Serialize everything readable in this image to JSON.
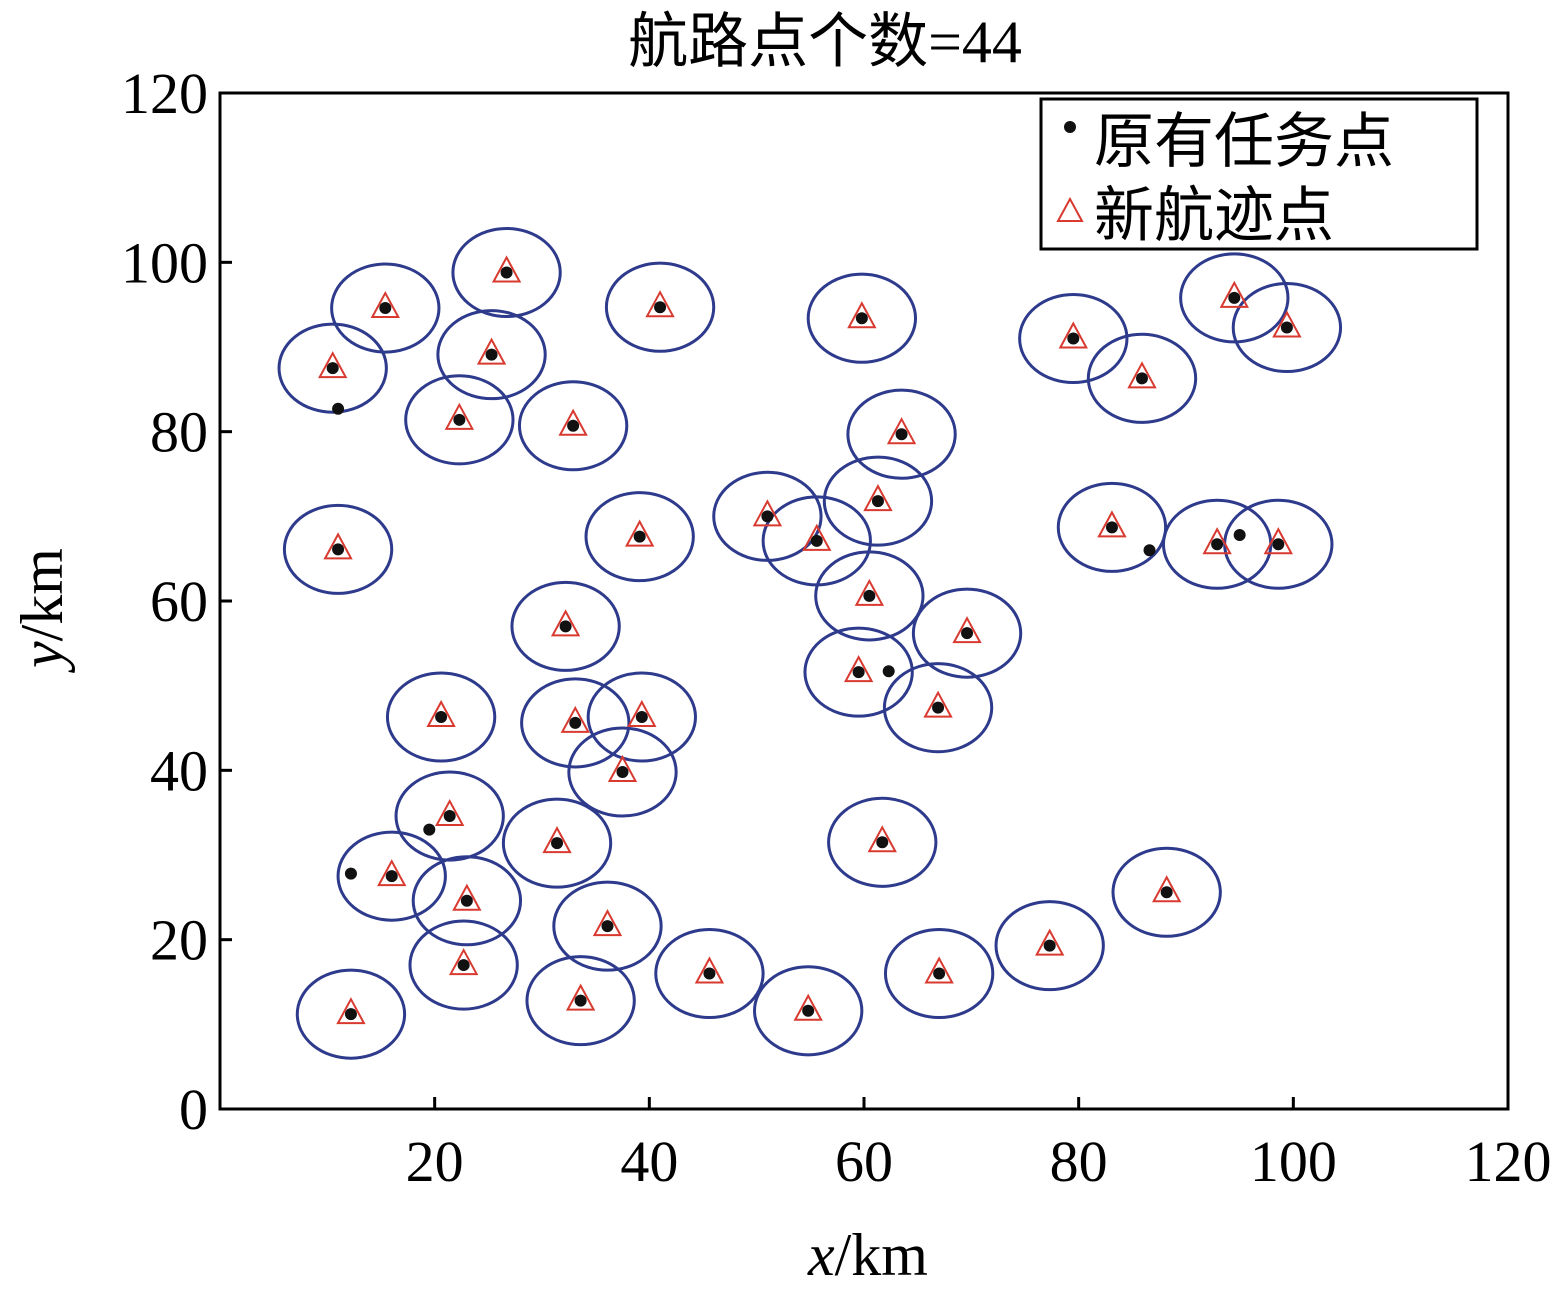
{
  "chart_data": {
    "type": "scatter",
    "title": "航路点个数=44",
    "xlabel_var": "x",
    "xlabel_unit": "/km",
    "ylabel_var": "y",
    "ylabel_unit": "/km",
    "xlim": [
      0,
      120
    ],
    "ylim": [
      0,
      120
    ],
    "x_ticks": [
      "20",
      "40",
      "60",
      "80",
      "100",
      "120"
    ],
    "x_tick_values": [
      20,
      40,
      60,
      80,
      100,
      120
    ],
    "y_ticks": [
      "0",
      "20",
      "40",
      "60",
      "80",
      "100",
      "120"
    ],
    "y_tick_values": [
      0,
      20,
      40,
      60,
      80,
      100,
      120
    ],
    "grid": false,
    "legend_position": "top-right",
    "circle_radius_x": 5.0,
    "circle_radius_y": 5.2,
    "colors": {
      "task_point": "#111111",
      "waypoint": "#d93a30",
      "circle": "#2e3a8c",
      "axis": "#000000"
    },
    "series": [
      {
        "name": "原有任务点",
        "marker": "dot",
        "points": [
          [
            12.2,
            11.2
          ],
          [
            22.7,
            17.0
          ],
          [
            33.6,
            12.8
          ],
          [
            45.6,
            16.0
          ],
          [
            54.8,
            11.6
          ],
          [
            67.0,
            16.0
          ],
          [
            77.3,
            19.3
          ],
          [
            88.2,
            25.6
          ],
          [
            16.0,
            27.5
          ],
          [
            12.2,
            27.8
          ],
          [
            23.0,
            24.6
          ],
          [
            36.1,
            21.6
          ],
          [
            21.4,
            34.6
          ],
          [
            19.5,
            33.0
          ],
          [
            31.4,
            31.4
          ],
          [
            61.7,
            31.5
          ],
          [
            20.6,
            46.3
          ],
          [
            33.1,
            45.6
          ],
          [
            39.3,
            46.3
          ],
          [
            37.5,
            39.8
          ],
          [
            32.2,
            57.0
          ],
          [
            59.5,
            51.6
          ],
          [
            62.3,
            51.7
          ],
          [
            66.9,
            47.4
          ],
          [
            69.6,
            56.2
          ],
          [
            60.5,
            60.6
          ],
          [
            11.0,
            66.1
          ],
          [
            39.1,
            67.6
          ],
          [
            51.0,
            70.0
          ],
          [
            55.6,
            67.1
          ],
          [
            61.3,
            71.8
          ],
          [
            63.5,
            79.7
          ],
          [
            83.1,
            68.7
          ],
          [
            86.6,
            66.0
          ],
          [
            92.9,
            66.7
          ],
          [
            95.0,
            67.8
          ],
          [
            98.6,
            66.7
          ],
          [
            11.0,
            82.7
          ],
          [
            10.5,
            87.5
          ],
          [
            22.3,
            81.4
          ],
          [
            32.9,
            80.7
          ],
          [
            15.4,
            94.6
          ],
          [
            26.7,
            98.8
          ],
          [
            25.3,
            89.1
          ],
          [
            41.0,
            94.7
          ],
          [
            59.8,
            93.4
          ],
          [
            79.5,
            91.0
          ],
          [
            85.9,
            86.3
          ],
          [
            94.5,
            95.8
          ],
          [
            99.4,
            92.3
          ]
        ]
      },
      {
        "name": "新航迹点",
        "marker": "triangle",
        "points": [
          [
            12.2,
            11.2
          ],
          [
            22.7,
            17.0
          ],
          [
            33.6,
            12.8
          ],
          [
            45.6,
            16.0
          ],
          [
            54.8,
            11.6
          ],
          [
            67.0,
            16.0
          ],
          [
            77.3,
            19.3
          ],
          [
            88.2,
            25.6
          ],
          [
            16.0,
            27.5
          ],
          [
            23.0,
            24.6
          ],
          [
            36.1,
            21.6
          ],
          [
            21.4,
            34.6
          ],
          [
            31.4,
            31.4
          ],
          [
            61.7,
            31.5
          ],
          [
            20.6,
            46.3
          ],
          [
            33.1,
            45.6
          ],
          [
            39.3,
            46.3
          ],
          [
            37.5,
            39.8
          ],
          [
            32.2,
            57.0
          ],
          [
            59.5,
            51.6
          ],
          [
            66.9,
            47.4
          ],
          [
            69.6,
            56.2
          ],
          [
            60.5,
            60.6
          ],
          [
            11.0,
            66.1
          ],
          [
            39.1,
            67.6
          ],
          [
            51.0,
            70.0
          ],
          [
            55.6,
            67.1
          ],
          [
            61.3,
            71.8
          ],
          [
            63.5,
            79.7
          ],
          [
            83.1,
            68.7
          ],
          [
            92.9,
            66.7
          ],
          [
            98.6,
            66.7
          ],
          [
            10.5,
            87.5
          ],
          [
            22.3,
            81.4
          ],
          [
            32.9,
            80.7
          ],
          [
            15.4,
            94.6
          ],
          [
            26.7,
            98.8
          ],
          [
            25.3,
            89.1
          ],
          [
            41.0,
            94.7
          ],
          [
            59.8,
            93.4
          ],
          [
            79.5,
            91.0
          ],
          [
            85.9,
            86.3
          ],
          [
            94.5,
            95.8
          ],
          [
            99.4,
            92.3
          ]
        ]
      }
    ]
  }
}
